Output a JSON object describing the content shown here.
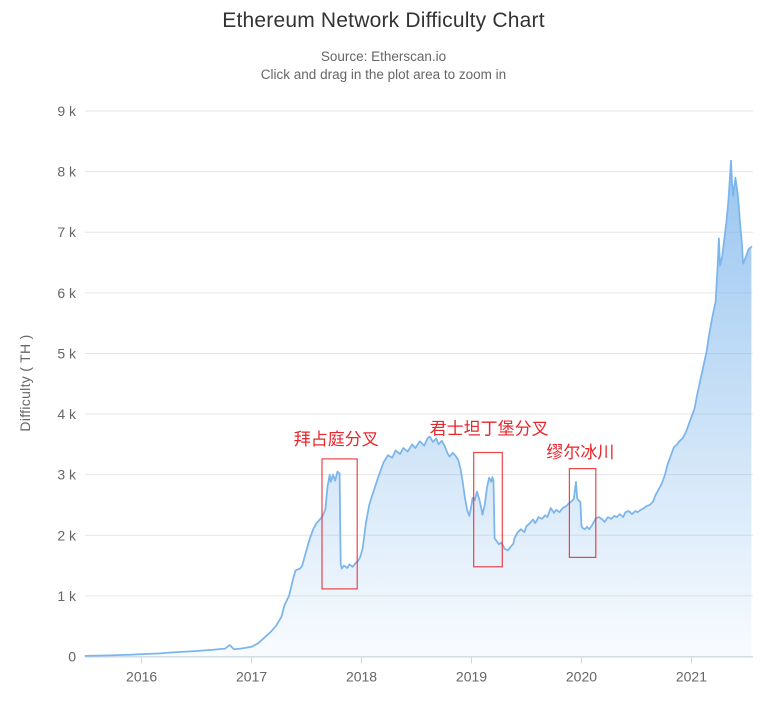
{
  "colors": {
    "series_line": "#7cb5ec",
    "area_fill": "#7cb5ec",
    "annotation_red": "#e8262c",
    "grid_line": "#e6e6e6",
    "axis_line": "#ccd6eb",
    "tick_text": "#666666",
    "title_text": "#333333"
  },
  "chart_data": {
    "type": "area",
    "title": "Ethereum Network Difficulty Chart",
    "subtitle_source": "Source: Etherscan.io",
    "subtitle_hint": "Click and drag in the plot area to zoom in",
    "xlabel": "",
    "ylabel": "Difficulty ( TH )",
    "unit": "TH",
    "grid": "horizontal-only",
    "legend": "none",
    "xlim": [
      2015.485,
      2021.56
    ],
    "ylim": [
      0,
      9000
    ],
    "x_ticks": [
      {
        "value": 2016,
        "label": "2016"
      },
      {
        "value": 2017,
        "label": "2017"
      },
      {
        "value": 2018,
        "label": "2018"
      },
      {
        "value": 2019,
        "label": "2019"
      },
      {
        "value": 2020,
        "label": "2020"
      },
      {
        "value": 2021,
        "label": "2021"
      }
    ],
    "y_ticks": [
      {
        "value": 0,
        "label": "0"
      },
      {
        "value": 1000,
        "label": "1 k"
      },
      {
        "value": 2000,
        "label": "2 k"
      },
      {
        "value": 3000,
        "label": "3 k"
      },
      {
        "value": 4000,
        "label": "4 k"
      },
      {
        "value": 5000,
        "label": "5 k"
      },
      {
        "value": 6000,
        "label": "6 k"
      },
      {
        "value": 7000,
        "label": "7 k"
      },
      {
        "value": 8000,
        "label": "8 k"
      },
      {
        "value": 9000,
        "label": "9 k"
      }
    ],
    "series": [
      {
        "name": "Difficulty",
        "points": [
          [
            2015.49,
            10
          ],
          [
            2015.6,
            15
          ],
          [
            2015.75,
            20
          ],
          [
            2015.9,
            30
          ],
          [
            2016.0,
            40
          ],
          [
            2016.15,
            50
          ],
          [
            2016.3,
            70
          ],
          [
            2016.5,
            90
          ],
          [
            2016.65,
            110
          ],
          [
            2016.76,
            130
          ],
          [
            2016.8,
            190
          ],
          [
            2016.84,
            120
          ],
          [
            2016.9,
            130
          ],
          [
            2016.95,
            145
          ],
          [
            2017.0,
            160
          ],
          [
            2017.06,
            220
          ],
          [
            2017.11,
            300
          ],
          [
            2017.17,
            400
          ],
          [
            2017.22,
            500
          ],
          [
            2017.27,
            650
          ],
          [
            2017.3,
            850
          ],
          [
            2017.34,
            1000
          ],
          [
            2017.38,
            1300
          ],
          [
            2017.4,
            1420
          ],
          [
            2017.44,
            1450
          ],
          [
            2017.46,
            1500
          ],
          [
            2017.49,
            1700
          ],
          [
            2017.53,
            1950
          ],
          [
            2017.56,
            2100
          ],
          [
            2017.59,
            2200
          ],
          [
            2017.64,
            2300
          ],
          [
            2017.67,
            2420
          ],
          [
            2017.69,
            2800
          ],
          [
            2017.71,
            3000
          ],
          [
            2017.72,
            2880
          ],
          [
            2017.74,
            3000
          ],
          [
            2017.76,
            2900
          ],
          [
            2017.78,
            3050
          ],
          [
            2017.8,
            3020
          ],
          [
            2017.81,
            1520
          ],
          [
            2017.82,
            1450
          ],
          [
            2017.84,
            1500
          ],
          [
            2017.87,
            1460
          ],
          [
            2017.89,
            1520
          ],
          [
            2017.92,
            1480
          ],
          [
            2017.95,
            1550
          ],
          [
            2017.97,
            1580
          ],
          [
            2017.99,
            1650
          ],
          [
            2018.01,
            1780
          ],
          [
            2018.04,
            2200
          ],
          [
            2018.07,
            2500
          ],
          [
            2018.09,
            2620
          ],
          [
            2018.12,
            2780
          ],
          [
            2018.15,
            2950
          ],
          [
            2018.18,
            3100
          ],
          [
            2018.2,
            3200
          ],
          [
            2018.24,
            3320
          ],
          [
            2018.28,
            3280
          ],
          [
            2018.31,
            3400
          ],
          [
            2018.35,
            3340
          ],
          [
            2018.38,
            3440
          ],
          [
            2018.42,
            3380
          ],
          [
            2018.46,
            3500
          ],
          [
            2018.49,
            3440
          ],
          [
            2018.53,
            3550
          ],
          [
            2018.57,
            3480
          ],
          [
            2018.6,
            3600
          ],
          [
            2018.62,
            3630
          ],
          [
            2018.65,
            3540
          ],
          [
            2018.68,
            3600
          ],
          [
            2018.7,
            3500
          ],
          [
            2018.73,
            3560
          ],
          [
            2018.76,
            3460
          ],
          [
            2018.78,
            3360
          ],
          [
            2018.8,
            3300
          ],
          [
            2018.83,
            3360
          ],
          [
            2018.86,
            3300
          ],
          [
            2018.88,
            3240
          ],
          [
            2018.9,
            3100
          ],
          [
            2018.92,
            2880
          ],
          [
            2018.94,
            2620
          ],
          [
            2018.96,
            2420
          ],
          [
            2018.98,
            2320
          ],
          [
            2019.0,
            2500
          ],
          [
            2019.01,
            2620
          ],
          [
            2019.03,
            2580
          ],
          [
            2019.05,
            2720
          ],
          [
            2019.07,
            2600
          ],
          [
            2019.09,
            2440
          ],
          [
            2019.1,
            2340
          ],
          [
            2019.12,
            2500
          ],
          [
            2019.14,
            2780
          ],
          [
            2019.16,
            2950
          ],
          [
            2019.18,
            2880
          ],
          [
            2019.19,
            2960
          ],
          [
            2019.2,
            2900
          ],
          [
            2019.21,
            1950
          ],
          [
            2019.23,
            1900
          ],
          [
            2019.25,
            1850
          ],
          [
            2019.27,
            1880
          ],
          [
            2019.29,
            1820
          ],
          [
            2019.3,
            1780
          ],
          [
            2019.33,
            1750
          ],
          [
            2019.36,
            1820
          ],
          [
            2019.38,
            1860
          ],
          [
            2019.39,
            1950
          ],
          [
            2019.42,
            2050
          ],
          [
            2019.45,
            2100
          ],
          [
            2019.48,
            2050
          ],
          [
            2019.5,
            2150
          ],
          [
            2019.53,
            2200
          ],
          [
            2019.56,
            2260
          ],
          [
            2019.58,
            2200
          ],
          [
            2019.61,
            2300
          ],
          [
            2019.64,
            2270
          ],
          [
            2019.67,
            2330
          ],
          [
            2019.69,
            2300
          ],
          [
            2019.72,
            2450
          ],
          [
            2019.75,
            2370
          ],
          [
            2019.77,
            2420
          ],
          [
            2019.8,
            2380
          ],
          [
            2019.83,
            2450
          ],
          [
            2019.86,
            2480
          ],
          [
            2019.88,
            2520
          ],
          [
            2019.91,
            2560
          ],
          [
            2019.93,
            2600
          ],
          [
            2019.95,
            2880
          ],
          [
            2019.96,
            2620
          ],
          [
            2019.97,
            2580
          ],
          [
            2019.99,
            2550
          ],
          [
            2020.0,
            2150
          ],
          [
            2020.01,
            2120
          ],
          [
            2020.03,
            2100
          ],
          [
            2020.05,
            2140
          ],
          [
            2020.07,
            2100
          ],
          [
            2020.09,
            2150
          ],
          [
            2020.1,
            2180
          ],
          [
            2020.13,
            2280
          ],
          [
            2020.16,
            2300
          ],
          [
            2020.19,
            2260
          ],
          [
            2020.21,
            2220
          ],
          [
            2020.24,
            2300
          ],
          [
            2020.27,
            2270
          ],
          [
            2020.3,
            2320
          ],
          [
            2020.32,
            2300
          ],
          [
            2020.35,
            2350
          ],
          [
            2020.38,
            2300
          ],
          [
            2020.4,
            2380
          ],
          [
            2020.43,
            2400
          ],
          [
            2020.46,
            2350
          ],
          [
            2020.49,
            2400
          ],
          [
            2020.51,
            2380
          ],
          [
            2020.54,
            2420
          ],
          [
            2020.57,
            2450
          ],
          [
            2020.59,
            2480
          ],
          [
            2020.62,
            2500
          ],
          [
            2020.65,
            2550
          ],
          [
            2020.67,
            2650
          ],
          [
            2020.7,
            2750
          ],
          [
            2020.73,
            2850
          ],
          [
            2020.76,
            3000
          ],
          [
            2020.78,
            3150
          ],
          [
            2020.81,
            3300
          ],
          [
            2020.84,
            3450
          ],
          [
            2020.87,
            3500
          ],
          [
            2020.89,
            3550
          ],
          [
            2020.92,
            3600
          ],
          [
            2020.95,
            3700
          ],
          [
            2020.97,
            3800
          ],
          [
            2021.0,
            3950
          ],
          [
            2021.03,
            4100
          ],
          [
            2021.05,
            4300
          ],
          [
            2021.08,
            4550
          ],
          [
            2021.11,
            4800
          ],
          [
            2021.14,
            5050
          ],
          [
            2021.16,
            5300
          ],
          [
            2021.19,
            5600
          ],
          [
            2021.22,
            5850
          ],
          [
            2021.24,
            6500
          ],
          [
            2021.25,
            6900
          ],
          [
            2021.26,
            6450
          ],
          [
            2021.28,
            6600
          ],
          [
            2021.3,
            6900
          ],
          [
            2021.32,
            7200
          ],
          [
            2021.335,
            7500
          ],
          [
            2021.35,
            7900
          ],
          [
            2021.36,
            8180
          ],
          [
            2021.37,
            7800
          ],
          [
            2021.38,
            7600
          ],
          [
            2021.39,
            7750
          ],
          [
            2021.4,
            7900
          ],
          [
            2021.42,
            7650
          ],
          [
            2021.43,
            7450
          ],
          [
            2021.44,
            7200
          ],
          [
            2021.45,
            7000
          ],
          [
            2021.46,
            6800
          ],
          [
            2021.465,
            6600
          ],
          [
            2021.47,
            6480
          ],
          [
            2021.48,
            6520
          ],
          [
            2021.5,
            6620
          ],
          [
            2021.52,
            6720
          ],
          [
            2021.545,
            6760
          ]
        ]
      }
    ],
    "annotations": [
      {
        "label": "拜占庭分叉",
        "label_en": "Byzantium fork",
        "label_x": 2017.77,
        "label_y": 3590,
        "box": {
          "x1": 2017.64,
          "x2": 2017.96,
          "y1": 1115,
          "y2": 3260
        }
      },
      {
        "label": "君士坦丁堡分叉",
        "label_en": "Constantinople fork",
        "label_x": 2019.16,
        "label_y": 3760,
        "box": {
          "x1": 2019.02,
          "x2": 2019.28,
          "y1": 1480,
          "y2": 3365
        }
      },
      {
        "label": "缪尔冰川",
        "label_en": "Muir Glacier",
        "label_x": 2019.99,
        "label_y": 3375,
        "box": {
          "x1": 2019.89,
          "x2": 2020.13,
          "y1": 1635,
          "y2": 3100
        }
      }
    ]
  }
}
